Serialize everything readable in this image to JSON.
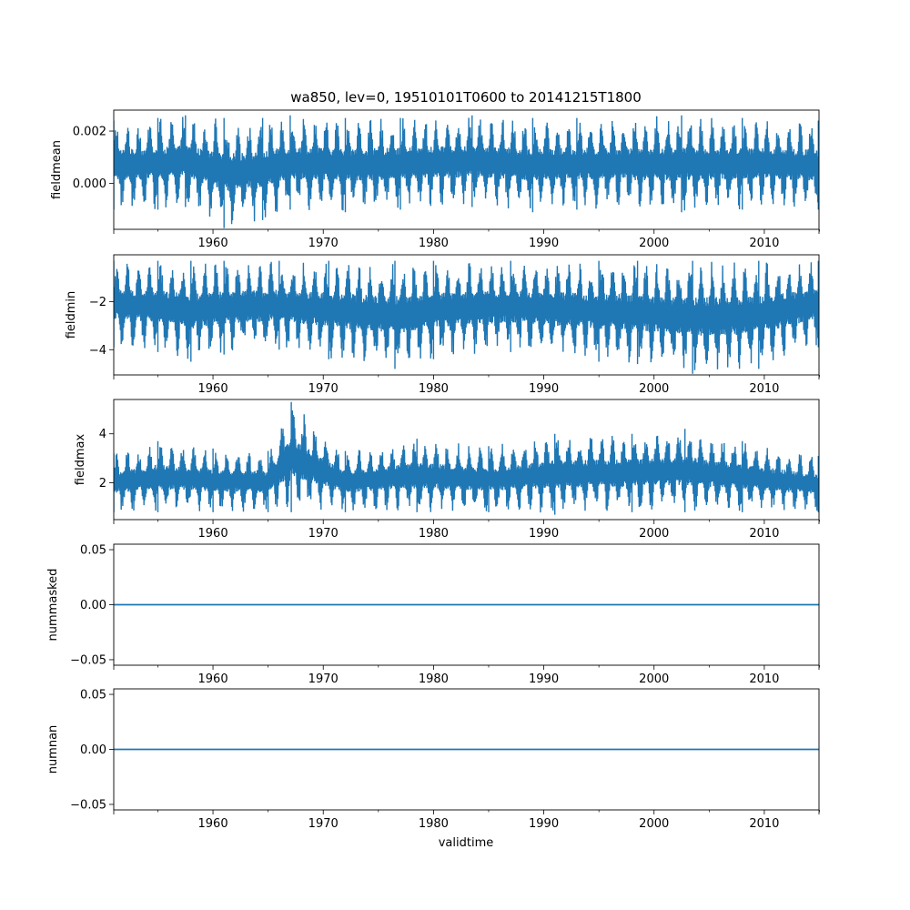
{
  "figure": {
    "title": "wa850, lev=0, 19510101T0600 to 20141215T1800",
    "xlabel": "validtime",
    "line_color": "#1f77b4"
  },
  "chart_data": [
    {
      "type": "line",
      "ylabel": "fieldmean",
      "xlim": [
        1951.0,
        2014.96
      ],
      "ylim": [
        -0.00175,
        0.0028
      ],
      "x_ticks": [
        1960,
        1970,
        1980,
        1990,
        2000,
        2010
      ],
      "x_tick_labels": [
        "1960",
        "1970",
        "1980",
        "1990",
        "2000",
        "2010"
      ],
      "y_ticks": [
        0.0,
        0.002
      ],
      "y_tick_labels": [
        "0.000",
        "0.002"
      ],
      "series": [
        {
          "x": [
            1951.0,
            1955.0,
            1957.5,
            1961.0,
            1964.5,
            1967.0,
            1972.0,
            1977.0,
            1983.5,
            1989.0,
            1993.0,
            2002.5,
            2008.0,
            2014.9
          ],
          "ymax": [
            0.0024,
            0.0025,
            0.0026,
            0.0025,
            0.0025,
            0.0026,
            0.0025,
            0.0025,
            0.0026,
            0.0025,
            0.0025,
            0.0026,
            0.0025,
            0.0024
          ],
          "ymin": [
            -0.001,
            -0.001,
            -0.0009,
            -0.0017,
            -0.0014,
            -0.001,
            -0.0011,
            -0.001,
            -0.0009,
            -0.0011,
            -0.001,
            -0.0011,
            -0.001,
            -0.001
          ]
        }
      ]
    },
    {
      "type": "line",
      "ylabel": "fieldmin",
      "xlim": [
        1951.0,
        2014.96
      ],
      "ylim": [
        -5.05,
        -0.05
      ],
      "x_ticks": [
        1960,
        1970,
        1980,
        1990,
        2000,
        2010
      ],
      "x_tick_labels": [
        "1960",
        "1970",
        "1980",
        "1990",
        "2000",
        "2010"
      ],
      "y_ticks": [
        -4,
        -2
      ],
      "y_tick_labels": [
        "−4",
        "−2"
      ],
      "series": [
        {
          "x": [
            1951.0,
            1955.0,
            1958.0,
            1961.0,
            1966.0,
            1970.5,
            1976.5,
            1980.0,
            1987.0,
            1995.0,
            1998.5,
            2003.5,
            2009.5,
            2014.9
          ],
          "ymax": [
            -0.3,
            -0.3,
            -0.3,
            -0.3,
            -0.3,
            -0.3,
            -0.3,
            -0.3,
            -0.3,
            -0.3,
            -0.3,
            -0.3,
            -0.3,
            -0.3
          ],
          "ymin": [
            -3.9,
            -4.1,
            -4.5,
            -4.2,
            -4.0,
            -4.4,
            -4.8,
            -4.4,
            -4.1,
            -4.5,
            -4.6,
            -5.0,
            -4.8,
            -3.9
          ]
        }
      ]
    },
    {
      "type": "line",
      "ylabel": "fieldmax",
      "xlim": [
        1951.0,
        2014.96
      ],
      "ylim": [
        0.5,
        5.4
      ],
      "x_ticks": [
        1960,
        1970,
        1980,
        1990,
        2000,
        2010
      ],
      "x_tick_labels": [
        "1960",
        "1970",
        "1980",
        "1990",
        "2000",
        "2010"
      ],
      "y_ticks": [
        2,
        4
      ],
      "y_tick_labels": [
        "2",
        "4"
      ],
      "series": [
        {
          "x": [
            1951.0,
            1955.0,
            1960.0,
            1965.0,
            1967.1,
            1972.0,
            1978.5,
            1985.0,
            1991.0,
            1998.0,
            2002.8,
            2008.0,
            2014.9
          ],
          "ymax": [
            3.2,
            3.7,
            3.4,
            3.3,
            5.3,
            3.3,
            3.8,
            3.5,
            4.0,
            4.0,
            4.2,
            3.7,
            3.1
          ],
          "ymin": [
            0.8,
            0.8,
            0.8,
            0.8,
            0.8,
            0.8,
            0.8,
            0.8,
            0.7,
            0.8,
            0.8,
            0.8,
            0.8
          ]
        }
      ]
    },
    {
      "type": "line",
      "ylabel": "nummasked",
      "xlim": [
        1951.0,
        2014.96
      ],
      "ylim": [
        -0.055,
        0.055
      ],
      "x_ticks": [
        1960,
        1970,
        1980,
        1990,
        2000,
        2010
      ],
      "x_tick_labels": [
        "1960",
        "1970",
        "1980",
        "1990",
        "2000",
        "2010"
      ],
      "y_ticks": [
        -0.05,
        0.0,
        0.05
      ],
      "y_tick_labels": [
        "−0.05",
        "0.00",
        "0.05"
      ],
      "series": [
        {
          "x": [
            1951.0,
            2014.96
          ],
          "y": [
            0,
            0
          ]
        }
      ]
    },
    {
      "type": "line",
      "ylabel": "numnan",
      "xlim": [
        1951.0,
        2014.96
      ],
      "ylim": [
        -0.055,
        0.055
      ],
      "x_ticks": [
        1960,
        1970,
        1980,
        1990,
        2000,
        2010
      ],
      "x_tick_labels": [
        "1960",
        "1970",
        "1980",
        "1990",
        "2000",
        "2010"
      ],
      "y_ticks": [
        -0.05,
        0.0,
        0.05
      ],
      "y_tick_labels": [
        "−0.05",
        "0.00",
        "0.05"
      ],
      "series": [
        {
          "x": [
            1951.0,
            2014.96
          ],
          "y": [
            0,
            0
          ]
        }
      ]
    }
  ]
}
